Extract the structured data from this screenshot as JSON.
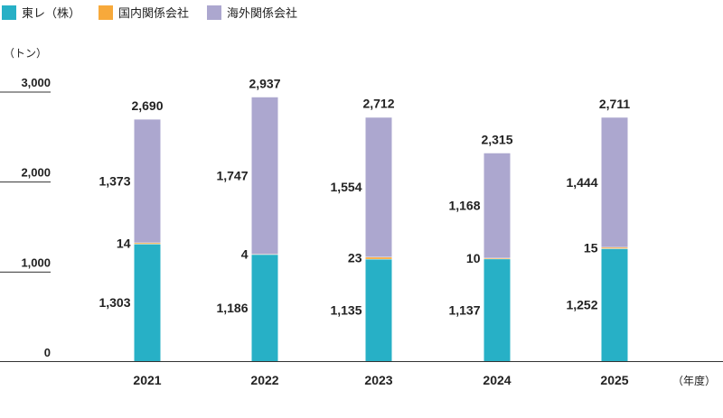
{
  "chart_data": {
    "type": "bar",
    "stacked": true,
    "categories": [
      "2021",
      "2022",
      "2023",
      "2024",
      "2025"
    ],
    "series": [
      {
        "name": "東レ（株）",
        "color": "#27b0c6",
        "values": [
          1303,
          1186,
          1135,
          1137,
          1252
        ]
      },
      {
        "name": "国内関係会社",
        "color": "#f7a93b",
        "values": [
          14,
          4,
          23,
          10,
          15
        ]
      },
      {
        "name": "海外関係会社",
        "color": "#aca7cf",
        "values": [
          1373,
          1747,
          1554,
          1168,
          1444
        ]
      }
    ],
    "totals": [
      "2,690",
      "2,937",
      "2,712",
      "2,315",
      "2,711"
    ],
    "value_labels": [
      [
        "1,303",
        "1,186",
        "1,135",
        "1,137",
        "1,252"
      ],
      [
        "14",
        "4",
        "23",
        "10",
        "15"
      ],
      [
        "1,373",
        "1,747",
        "1,554",
        "1,168",
        "1,444"
      ]
    ],
    "y_ticks": [
      0,
      1000,
      2000,
      3000
    ],
    "y_tick_labels": [
      "0",
      "1,000",
      "2,000",
      "3,000"
    ],
    "ylim": [
      0,
      3000
    ],
    "ylabel": "（トン）",
    "xlabel": "（年度）"
  }
}
